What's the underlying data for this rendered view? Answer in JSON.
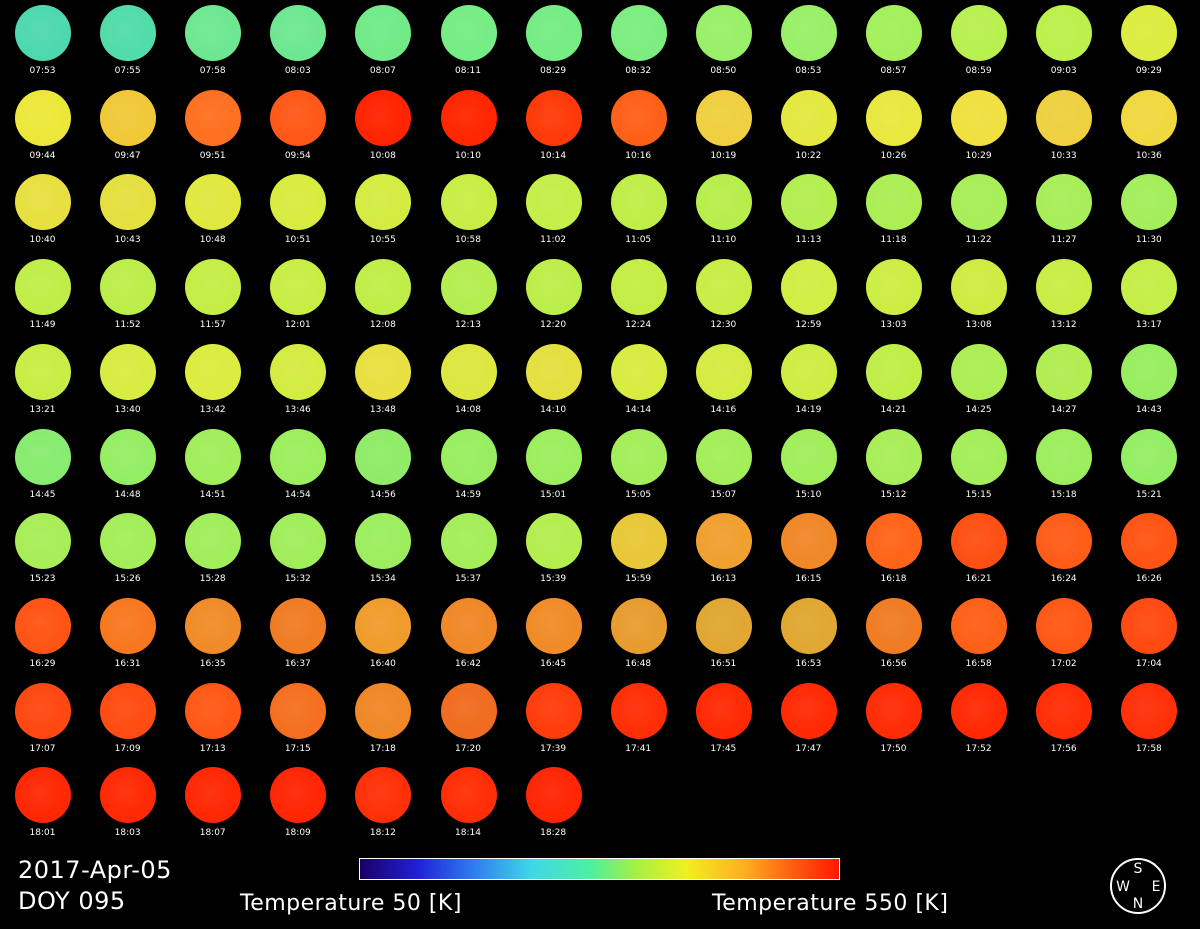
{
  "date": "2017-Apr-05",
  "doy": "DOY 095",
  "colorbar": {
    "min_label": "Temperature 50 [K]",
    "max_label": "Temperature 550 [K]",
    "colors": [
      "#1a0066",
      "#2020d8",
      "#2f7ff0",
      "#3fd8e8",
      "#4cf0a0",
      "#a8f040",
      "#f0f020",
      "#ffb020",
      "#ff6010",
      "#ff1800"
    ]
  },
  "compass": {
    "top": "S",
    "left": "W",
    "right": "E",
    "bottom": "N"
  },
  "frames": [
    {
      "time": "07:53",
      "color": "#4ed8b0"
    },
    {
      "time": "07:55",
      "color": "#52dcaa"
    },
    {
      "time": "07:58",
      "color": "#6ee890"
    },
    {
      "time": "08:03",
      "color": "#6ee890"
    },
    {
      "time": "08:07",
      "color": "#72ea88"
    },
    {
      "time": "08:11",
      "color": "#76ec84"
    },
    {
      "time": "08:29",
      "color": "#76ec84"
    },
    {
      "time": "08:32",
      "color": "#7cee80"
    },
    {
      "time": "08:50",
      "color": "#98f068"
    },
    {
      "time": "08:53",
      "color": "#98f068"
    },
    {
      "time": "08:57",
      "color": "#a4f05c"
    },
    {
      "time": "08:59",
      "color": "#b8f050"
    },
    {
      "time": "09:03",
      "color": "#bcf04c"
    },
    {
      "time": "09:29",
      "color": "#dcec40"
    },
    {
      "time": "09:44",
      "color": "#ece83a"
    },
    {
      "time": "09:47",
      "color": "#f0c838"
    },
    {
      "time": "09:51",
      "color": "#ff7020"
    },
    {
      "time": "09:54",
      "color": "#ff5818"
    },
    {
      "time": "10:08",
      "color": "#ff2400"
    },
    {
      "time": "10:10",
      "color": "#ff2600"
    },
    {
      "time": "10:14",
      "color": "#ff3a08"
    },
    {
      "time": "10:16",
      "color": "#ff6018"
    },
    {
      "time": "10:19",
      "color": "#f0d040"
    },
    {
      "time": "10:22",
      "color": "#e4e840"
    },
    {
      "time": "10:26",
      "color": "#e8e840"
    },
    {
      "time": "10:29",
      "color": "#f0e040"
    },
    {
      "time": "10:33",
      "color": "#eed040"
    },
    {
      "time": "10:36",
      "color": "#f0d840"
    },
    {
      "time": "10:40",
      "color": "#e8e040"
    },
    {
      "time": "10:43",
      "color": "#e4e040"
    },
    {
      "time": "10:48",
      "color": "#e0e840"
    },
    {
      "time": "10:51",
      "color": "#d8ec40"
    },
    {
      "time": "10:55",
      "color": "#d4ec42"
    },
    {
      "time": "10:58",
      "color": "#c8ee46"
    },
    {
      "time": "11:02",
      "color": "#c4ee48"
    },
    {
      "time": "11:05",
      "color": "#c0ee48"
    },
    {
      "time": "11:10",
      "color": "#b8ee4c"
    },
    {
      "time": "11:13",
      "color": "#b4ee50"
    },
    {
      "time": "11:18",
      "color": "#acee54"
    },
    {
      "time": "11:22",
      "color": "#a8ee58"
    },
    {
      "time": "11:27",
      "color": "#a8ee58"
    },
    {
      "time": "11:30",
      "color": "#a4ee5c"
    },
    {
      "time": "11:49",
      "color": "#c0ee48"
    },
    {
      "time": "11:52",
      "color": "#bcee4a"
    },
    {
      "time": "11:57",
      "color": "#c4ee46"
    },
    {
      "time": "12:01",
      "color": "#c8ee46"
    },
    {
      "time": "12:08",
      "color": "#c0ee48"
    },
    {
      "time": "12:13",
      "color": "#b4ee50"
    },
    {
      "time": "12:20",
      "color": "#bcee4a"
    },
    {
      "time": "12:24",
      "color": "#c4ee46"
    },
    {
      "time": "12:30",
      "color": "#c8ee46"
    },
    {
      "time": "12:59",
      "color": "#d0ee44"
    },
    {
      "time": "13:03",
      "color": "#ccee44"
    },
    {
      "time": "13:08",
      "color": "#d0ec42"
    },
    {
      "time": "13:12",
      "color": "#c8ee46"
    },
    {
      "time": "13:17",
      "color": "#c4ee48"
    },
    {
      "time": "13:21",
      "color": "#c8ee46"
    },
    {
      "time": "13:40",
      "color": "#d8ec42"
    },
    {
      "time": "13:42",
      "color": "#dcec40"
    },
    {
      "time": "13:46",
      "color": "#d4ec42"
    },
    {
      "time": "13:48",
      "color": "#e8e040"
    },
    {
      "time": "14:08",
      "color": "#dce840"
    },
    {
      "time": "14:10",
      "color": "#e4e040"
    },
    {
      "time": "14:14",
      "color": "#d8ec42"
    },
    {
      "time": "14:16",
      "color": "#d4ec42"
    },
    {
      "time": "14:19",
      "color": "#ccee44"
    },
    {
      "time": "14:21",
      "color": "#c0ee48"
    },
    {
      "time": "14:25",
      "color": "#acee54"
    },
    {
      "time": "14:27",
      "color": "#b0ee52"
    },
    {
      "time": "14:43",
      "color": "#98ee60"
    },
    {
      "time": "14:45",
      "color": "#88ec70"
    },
    {
      "time": "14:48",
      "color": "#94ee64"
    },
    {
      "time": "14:51",
      "color": "#a0ee5c"
    },
    {
      "time": "14:54",
      "color": "#9cee5e"
    },
    {
      "time": "14:56",
      "color": "#90ec68"
    },
    {
      "time": "14:59",
      "color": "#98ee60"
    },
    {
      "time": "15:01",
      "color": "#9cee5e"
    },
    {
      "time": "15:05",
      "color": "#a4ee5a"
    },
    {
      "time": "15:07",
      "color": "#a4ee5a"
    },
    {
      "time": "15:10",
      "color": "#a0ee5c"
    },
    {
      "time": "15:12",
      "color": "#a8ee58"
    },
    {
      "time": "15:15",
      "color": "#a4ee5a"
    },
    {
      "time": "15:18",
      "color": "#9cee5e"
    },
    {
      "time": "15:21",
      "color": "#94ee64"
    },
    {
      "time": "15:23",
      "color": "#a8ee58"
    },
    {
      "time": "15:26",
      "color": "#a4ee5a"
    },
    {
      "time": "15:28",
      "color": "#a0ee5c"
    },
    {
      "time": "15:32",
      "color": "#a0ee5c"
    },
    {
      "time": "15:34",
      "color": "#9cee5e"
    },
    {
      "time": "15:37",
      "color": "#a4ee5a"
    },
    {
      "time": "15:39",
      "color": "#b4ee50"
    },
    {
      "time": "15:59",
      "color": "#e8c838"
    },
    {
      "time": "16:13",
      "color": "#f0a030"
    },
    {
      "time": "16:15",
      "color": "#f08828"
    },
    {
      "time": "16:18",
      "color": "#ff6418"
    },
    {
      "time": "16:21",
      "color": "#ff5014"
    },
    {
      "time": "16:24",
      "color": "#ff5c18"
    },
    {
      "time": "16:26",
      "color": "#ff5414"
    },
    {
      "time": "16:29",
      "color": "#ff5414"
    },
    {
      "time": "16:31",
      "color": "#f87820"
    },
    {
      "time": "16:35",
      "color": "#f08c28"
    },
    {
      "time": "16:37",
      "color": "#f07c24"
    },
    {
      "time": "16:40",
      "color": "#f09c2c"
    },
    {
      "time": "16:42",
      "color": "#f08828"
    },
    {
      "time": "16:45",
      "color": "#f08c28"
    },
    {
      "time": "16:48",
      "color": "#e89c30"
    },
    {
      "time": "16:51",
      "color": "#e0a832"
    },
    {
      "time": "16:53",
      "color": "#e0a832"
    },
    {
      "time": "16:56",
      "color": "#f07c24"
    },
    {
      "time": "16:58",
      "color": "#ff6018"
    },
    {
      "time": "17:02",
      "color": "#ff5816"
    },
    {
      "time": "17:04",
      "color": "#ff4a12"
    },
    {
      "time": "17:07",
      "color": "#ff4812"
    },
    {
      "time": "17:09",
      "color": "#ff4c12"
    },
    {
      "time": "17:13",
      "color": "#ff5816"
    },
    {
      "time": "17:15",
      "color": "#f47020"
    },
    {
      "time": "17:18",
      "color": "#f08828"
    },
    {
      "time": "17:20",
      "color": "#f06c20"
    },
    {
      "time": "17:39",
      "color": "#ff3c0c"
    },
    {
      "time": "17:41",
      "color": "#ff2e06"
    },
    {
      "time": "17:45",
      "color": "#ff2a04"
    },
    {
      "time": "17:47",
      "color": "#ff2a04"
    },
    {
      "time": "17:50",
      "color": "#ff2c06"
    },
    {
      "time": "17:52",
      "color": "#ff2a04"
    },
    {
      "time": "17:56",
      "color": "#ff2e06"
    },
    {
      "time": "17:58",
      "color": "#ff3008"
    },
    {
      "time": "18:01",
      "color": "#ff2804"
    },
    {
      "time": "18:03",
      "color": "#ff2a04"
    },
    {
      "time": "18:07",
      "color": "#ff2804"
    },
    {
      "time": "18:09",
      "color": "#ff2604"
    },
    {
      "time": "18:12",
      "color": "#ff3008"
    },
    {
      "time": "18:14",
      "color": "#ff2e06"
    },
    {
      "time": "18:28",
      "color": "#ff2604"
    }
  ]
}
